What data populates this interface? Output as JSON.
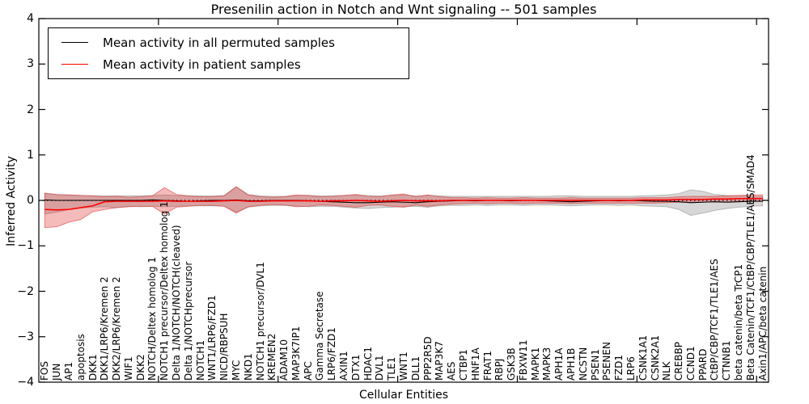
{
  "title": "Presenilin action in Notch and Wnt signaling -- 501 samples",
  "axes": {
    "ylabel": "Inferred Activity",
    "xlabel": "Cellular Entities",
    "yticks": [
      -4,
      -3,
      -2,
      -1,
      0,
      1,
      2,
      3,
      4
    ],
    "ylim": [
      -4,
      4
    ]
  },
  "legend": {
    "items": [
      {
        "label": "Mean activity in all permuted samples",
        "color": "#000000"
      },
      {
        "label": "Mean activity in patient samples",
        "color": "#ff0000"
      }
    ],
    "position": "upper left"
  },
  "colors": {
    "permuted_line": "#000000",
    "patient_line": "#ff0000",
    "permuted_band": "rgba(130,130,130,0.32)",
    "permuted_band_edge": "rgba(120,120,120,0.45)",
    "patient_band": "rgba(225,55,55,0.34)",
    "patient_band_edge": "rgba(215,45,45,0.55)",
    "reference_line": "#000000"
  },
  "chart_data": {
    "type": "line",
    "title": "Presenilin action in Notch and Wnt signaling -- 501 samples",
    "xlabel": "Cellular Entities",
    "ylabel": "Inferred Activity",
    "ylim": [
      -4,
      4
    ],
    "grid": false,
    "legend_position": "upper left",
    "x_major_tick_every": 10,
    "reference_line": {
      "y": 0,
      "style": "dotted",
      "color": "#000000"
    },
    "categories": [
      "FOS",
      "JUN",
      "AP1",
      "apoptosis",
      "DKK1",
      "DKK1/LRP6/Kremen 2",
      "DKK2/LRP6/Kremen 2",
      "WIF1",
      "DKK2",
      "NOTCH/Deltex homolog 1",
      "NOTCH1 precursor/Deltex homolog 1",
      "Delta 1/NOTCH/NOTCH(cleaved)",
      "Delta 1/NOTCHprecursor",
      "NOTCH1",
      "WNT1/LRP6/FZD1",
      "NICD/RBPSUH",
      "MYC",
      "NKD1",
      "NOTCH1 precursor/DVL1",
      "KREMEN2",
      "ADAM10",
      "MAP3K7IP1",
      "APC",
      "Gamma Secretase",
      "LRP6/FZD1",
      "AXIN1",
      "DTX1",
      "HDAC1",
      "DVL1",
      "TLE1",
      "WNT1",
      "DLL1",
      "PPP2R5D",
      "MAP3K7",
      "AES",
      "CTBP1",
      "HNF1A",
      "FRAT1",
      "RBPJ",
      "GSK3B",
      "FBXW11",
      "MAPK1",
      "MAPK3",
      "APH1A",
      "APH1B",
      "NCSTN",
      "PSEN1",
      "PSENEN",
      "FZD1",
      "LRP6",
      "CSNK1A1",
      "CSNK2A1",
      "NLK",
      "CREBBP",
      "CCND1",
      "PPARD",
      "CtBP/CBP/TCF1/TLE1/AES",
      "CTNNB1",
      "beta catenin/beta TrCP1",
      "Beta Catenin/TCF1/CtBP/CBP/TLE1/AES/SMAD4",
      "Axin1/APC/beta catenin"
    ],
    "series": [
      {
        "name": "Mean activity in all permuted samples",
        "color": "#000000",
        "values": [
          0.01,
          0.0,
          0.0,
          0.0,
          0.0,
          0.0,
          0.0,
          0.0,
          0.0,
          0.01,
          0.0,
          -0.01,
          -0.02,
          -0.01,
          0.0,
          0.0,
          0.01,
          -0.01,
          -0.01,
          0.0,
          0.0,
          0.0,
          -0.01,
          -0.02,
          -0.03,
          -0.04,
          -0.05,
          -0.05,
          -0.04,
          -0.03,
          -0.04,
          -0.05,
          -0.03,
          -0.02,
          -0.01,
          0.0,
          -0.01,
          0.0,
          0.0,
          -0.01,
          0.0,
          0.0,
          -0.01,
          -0.02,
          -0.03,
          -0.02,
          -0.01,
          0.0,
          -0.01,
          0.0,
          -0.01,
          -0.02,
          -0.02,
          -0.03,
          -0.05,
          -0.04,
          -0.03,
          -0.04,
          -0.03,
          -0.02,
          -0.02
        ],
        "band_upper": [
          0.15,
          0.13,
          0.12,
          0.11,
          0.1,
          0.1,
          0.1,
          0.1,
          0.1,
          0.11,
          0.12,
          0.11,
          0.1,
          0.1,
          0.1,
          0.11,
          0.3,
          0.13,
          0.1,
          0.09,
          0.09,
          0.1,
          0.11,
          0.1,
          0.1,
          0.11,
          0.12,
          0.11,
          0.1,
          0.11,
          0.12,
          0.1,
          0.11,
          0.1,
          0.09,
          0.09,
          0.09,
          0.09,
          0.09,
          0.09,
          0.09,
          0.09,
          0.09,
          0.1,
          0.1,
          0.09,
          0.09,
          0.09,
          0.09,
          0.09,
          0.1,
          0.11,
          0.12,
          0.15,
          0.23,
          0.2,
          0.13,
          0.11,
          0.1,
          0.09,
          0.08
        ],
        "band_lower": [
          -0.3,
          -0.26,
          -0.2,
          -0.17,
          -0.15,
          -0.14,
          -0.16,
          -0.13,
          -0.14,
          -0.13,
          -0.14,
          -0.13,
          -0.12,
          -0.12,
          -0.12,
          -0.13,
          -0.26,
          -0.15,
          -0.12,
          -0.11,
          -0.11,
          -0.12,
          -0.14,
          -0.13,
          -0.13,
          -0.15,
          -0.17,
          -0.18,
          -0.16,
          -0.15,
          -0.14,
          -0.13,
          -0.15,
          -0.12,
          -0.11,
          -0.11,
          -0.1,
          -0.11,
          -0.1,
          -0.1,
          -0.11,
          -0.1,
          -0.1,
          -0.11,
          -0.12,
          -0.11,
          -0.1,
          -0.1,
          -0.11,
          -0.1,
          -0.12,
          -0.13,
          -0.14,
          -0.2,
          -0.33,
          -0.28,
          -0.22,
          -0.18,
          -0.15,
          -0.13,
          -0.12
        ]
      },
      {
        "name": "Mean activity in patient samples",
        "color": "#ff0000",
        "values": [
          -0.2,
          -0.21,
          -0.2,
          -0.16,
          -0.12,
          -0.03,
          -0.02,
          -0.02,
          -0.02,
          -0.02,
          -0.01,
          -0.02,
          -0.02,
          -0.02,
          -0.02,
          -0.01,
          0.0,
          -0.02,
          -0.02,
          -0.01,
          -0.01,
          -0.01,
          -0.01,
          -0.02,
          -0.01,
          -0.01,
          0.0,
          -0.01,
          -0.02,
          -0.01,
          0.0,
          -0.01,
          -0.01,
          -0.01,
          0.0,
          0.0,
          0.0,
          0.0,
          0.0,
          0.0,
          0.0,
          0.0,
          0.0,
          0.0,
          0.0,
          0.0,
          0.0,
          0.0,
          0.0,
          0.0,
          0.01,
          0.01,
          0.01,
          0.02,
          0.02,
          0.02,
          0.03,
          0.03,
          0.04,
          0.04,
          0.04
        ],
        "band_upper": [
          0.16,
          0.13,
          0.12,
          0.11,
          0.1,
          0.08,
          0.09,
          0.07,
          0.08,
          0.1,
          0.28,
          0.13,
          0.1,
          0.08,
          0.08,
          0.1,
          0.3,
          0.12,
          0.08,
          0.07,
          0.08,
          0.12,
          0.11,
          0.08,
          0.09,
          0.11,
          0.13,
          0.09,
          0.08,
          0.12,
          0.14,
          0.08,
          0.12,
          0.08,
          0.06,
          0.06,
          0.05,
          0.06,
          0.05,
          0.05,
          0.06,
          0.05,
          0.05,
          0.05,
          0.06,
          0.05,
          0.05,
          0.05,
          0.05,
          0.05,
          0.06,
          0.06,
          0.06,
          0.08,
          0.09,
          0.09,
          0.09,
          0.1,
          0.11,
          0.12,
          0.12
        ],
        "band_lower": [
          -0.6,
          -0.58,
          -0.48,
          -0.42,
          -0.25,
          -0.2,
          -0.16,
          -0.14,
          -0.13,
          -0.13,
          -0.3,
          -0.15,
          -0.13,
          -0.11,
          -0.11,
          -0.13,
          -0.28,
          -0.14,
          -0.11,
          -0.09,
          -0.1,
          -0.14,
          -0.13,
          -0.1,
          -0.11,
          -0.13,
          -0.15,
          -0.11,
          -0.1,
          -0.13,
          -0.15,
          -0.1,
          -0.13,
          -0.1,
          -0.08,
          -0.07,
          -0.06,
          -0.07,
          -0.06,
          -0.06,
          -0.07,
          -0.06,
          -0.06,
          -0.06,
          -0.07,
          -0.06,
          -0.06,
          -0.06,
          -0.06,
          -0.06,
          -0.06,
          -0.06,
          -0.05,
          -0.04,
          -0.04,
          -0.04,
          -0.03,
          -0.03,
          -0.02,
          -0.02,
          -0.02
        ]
      }
    ]
  }
}
